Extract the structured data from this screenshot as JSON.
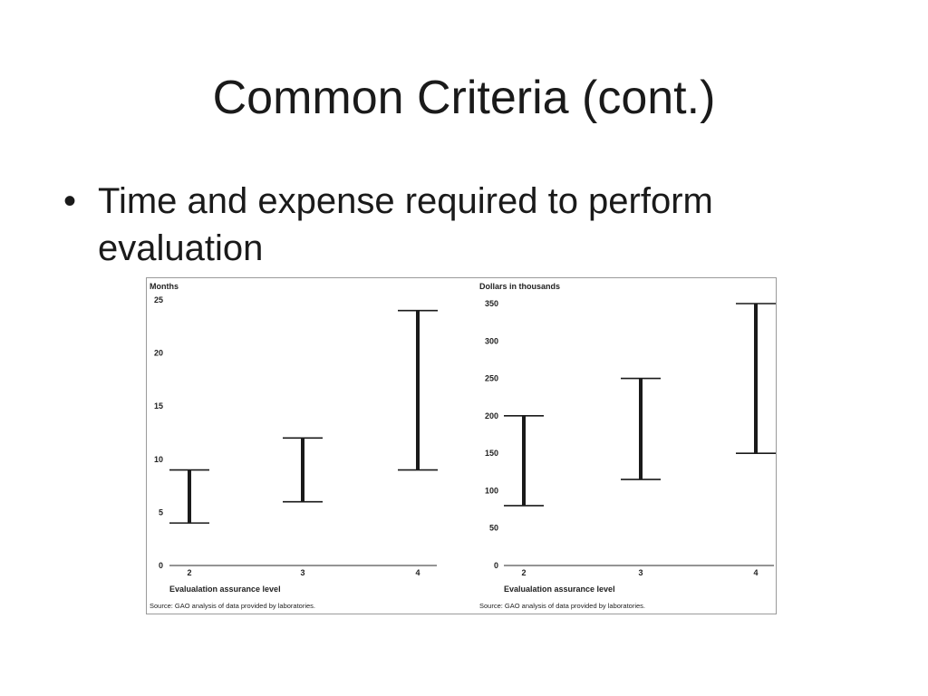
{
  "slide": {
    "title": "Common Criteria (cont.)",
    "bullet": "Time and expense required to perform evaluation",
    "bullet_marker": "•"
  },
  "chart_data": [
    {
      "type": "range",
      "unit_label": "Months",
      "xlabel": "Evalualation assurance level",
      "source": "Source: GAO analysis of data provided by laboratories.",
      "categories": [
        "2",
        "3",
        "4"
      ],
      "ranges": [
        [
          4,
          9
        ],
        [
          6,
          12
        ],
        [
          9,
          24
        ]
      ],
      "yticks": [
        0,
        5,
        10,
        15,
        20,
        25
      ],
      "ylim": [
        0,
        25
      ],
      "grid": false
    },
    {
      "type": "range",
      "unit_label": "Dollars in thousands",
      "xlabel": "Evalualation assurance level",
      "source": "Source: GAO analysis of data provided by laboratories.",
      "categories": [
        "2",
        "3",
        "4"
      ],
      "ranges": [
        [
          80,
          200
        ],
        [
          115,
          250
        ],
        [
          150,
          350
        ]
      ],
      "yticks": [
        0,
        50,
        100,
        150,
        200,
        250,
        300,
        350
      ],
      "ylim": [
        0,
        350
      ],
      "grid": false
    }
  ]
}
